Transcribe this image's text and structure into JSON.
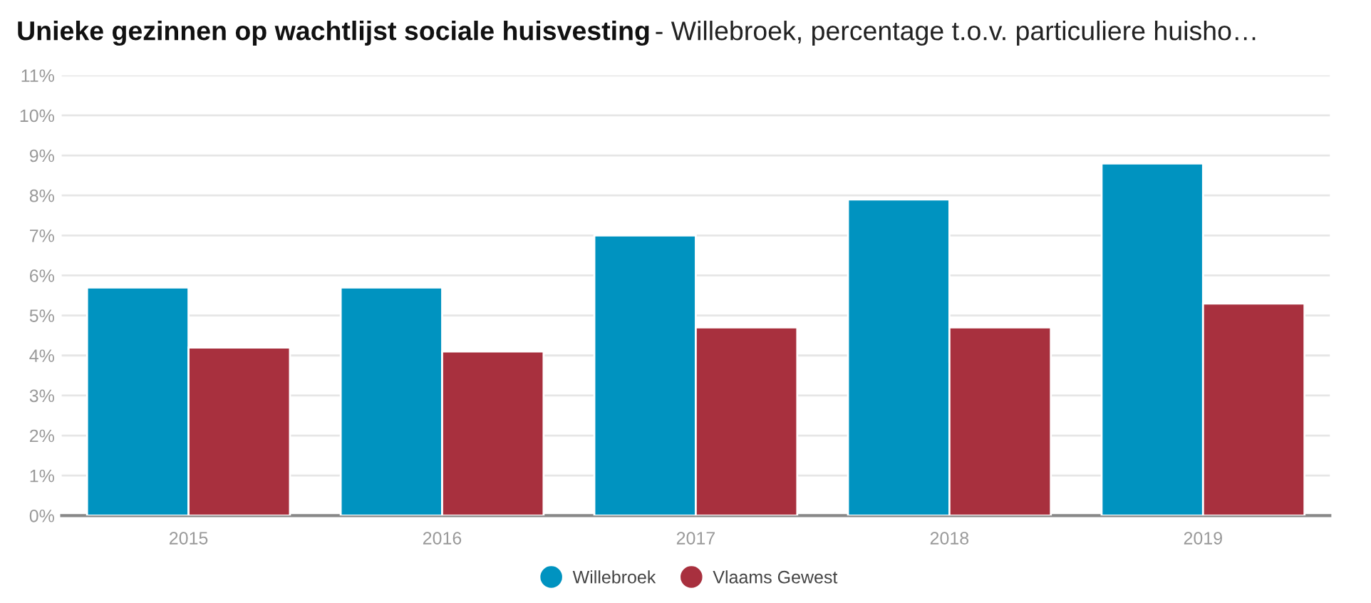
{
  "chart_data": {
    "type": "bar",
    "title": "Unieke gezinnen op wachtlijst sociale huisvesting",
    "subtitle": "- Willebroek, percentage t.o.v. particuliere huisho…",
    "categories": [
      "2015",
      "2016",
      "2017",
      "2018",
      "2019"
    ],
    "series": [
      {
        "name": "Willebroek",
        "color": "#0093c0",
        "values": [
          5.7,
          5.7,
          7.0,
          7.9,
          8.8
        ]
      },
      {
        "name": "Vlaams Gewest",
        "color": "#a8303e",
        "values": [
          4.2,
          4.1,
          4.7,
          4.7,
          5.3
        ]
      }
    ],
    "ylim": [
      0,
      11
    ],
    "yticks": [
      {
        "value": 0,
        "label": "0%"
      },
      {
        "value": 1,
        "label": "1%"
      },
      {
        "value": 2,
        "label": "2%"
      },
      {
        "value": 3,
        "label": "3%"
      },
      {
        "value": 4,
        "label": "4%"
      },
      {
        "value": 5,
        "label": "5%"
      },
      {
        "value": 6,
        "label": "6%"
      },
      {
        "value": 7,
        "label": "7%"
      },
      {
        "value": 8,
        "label": "8%"
      },
      {
        "value": 9,
        "label": "9%"
      },
      {
        "value": 10,
        "label": "10%"
      },
      {
        "value": 11,
        "label": "11%"
      }
    ],
    "grid": "y",
    "legend": "bottom",
    "marker": "circle"
  }
}
